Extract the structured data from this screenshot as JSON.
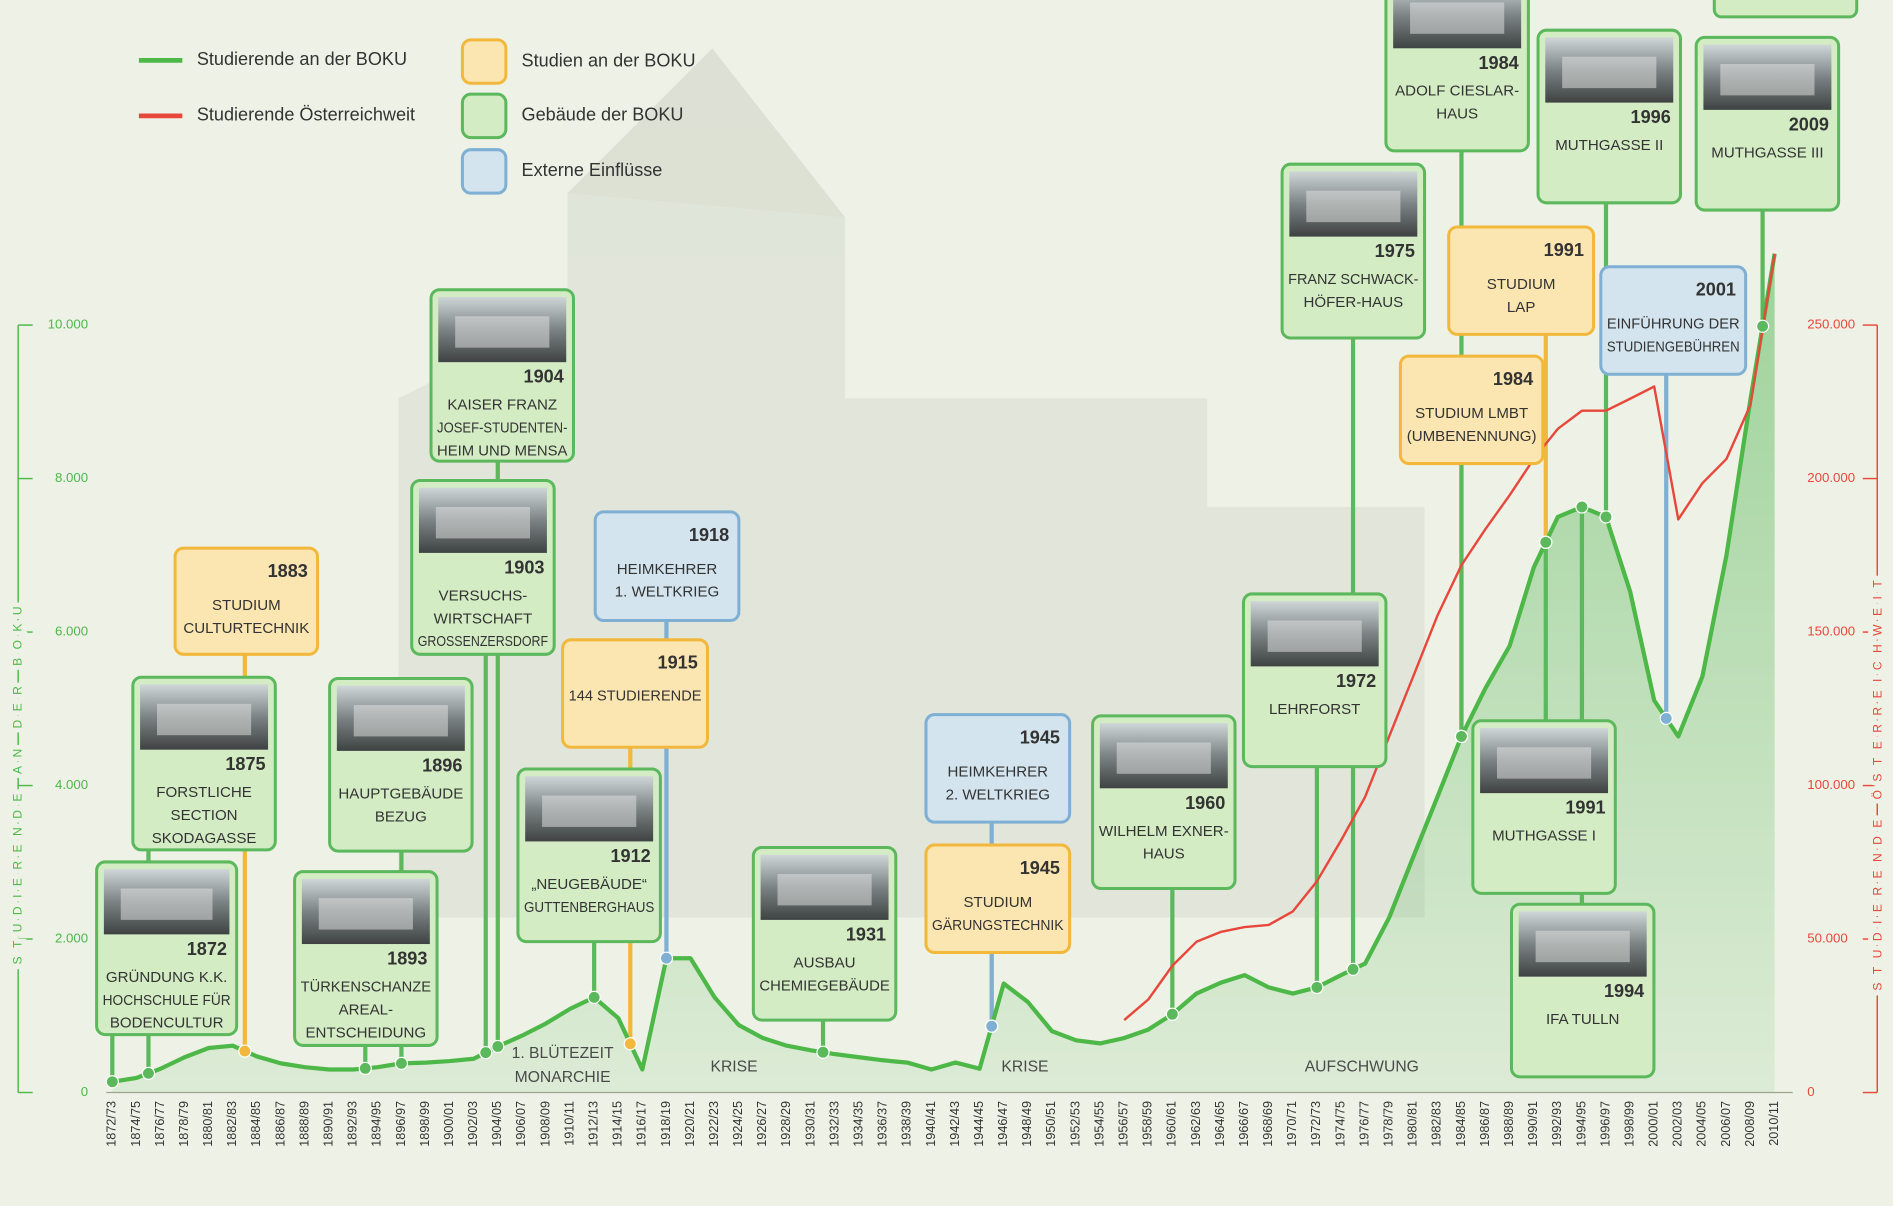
{
  "chart_data": {
    "type": "line",
    "axis_title": "STUDIERENDE AN DER BOKU",
    "axis2_title": "STUDIERENDE ÖSTERREICHWEIT",
    "categories": [
      "1872/73",
      "1874/75",
      "1876/77",
      "1878/79",
      "1880/81",
      "1882/83",
      "1884/85",
      "1886/87",
      "1888/89",
      "1890/91",
      "1892/93",
      "1894/95",
      "1896/97",
      "1898/99",
      "1900/01",
      "1902/03",
      "1904/05",
      "1906/07",
      "1908/09",
      "1910/11",
      "1912/13",
      "1914/15",
      "1916/17",
      "1918/19",
      "1920/21",
      "1922/23",
      "1924/25",
      "1926/27",
      "1928/29",
      "1930/31",
      "1932/33",
      "1934/35",
      "1936/37",
      "1938/39",
      "1940/41",
      "1942/43",
      "1944/45",
      "1946/47",
      "1948/49",
      "1950/51",
      "1952/53",
      "1954/55",
      "1956/57",
      "1958/59",
      "1960/61",
      "1962/63",
      "1964/65",
      "1966/67",
      "1968/69",
      "1970/71",
      "1972/73",
      "1974/75",
      "1976/77",
      "1978/79",
      "1980/81",
      "1982/83",
      "1984/85",
      "1986/87",
      "1988/89",
      "1990/91",
      "1992/93",
      "1994/95",
      "1996/97",
      "1998/99",
      "2000/01",
      "2002/03",
      "2004/05",
      "2006/07",
      "2008/09",
      "2010/11"
    ],
    "series": [
      {
        "name": "Studierende an der BOKU",
        "color": "#4db848",
        "values": [
          140,
          190,
          310,
          460,
          580,
          610,
          470,
          380,
          330,
          300,
          300,
          330,
          380,
          390,
          410,
          440,
          600,
          740,
          900,
          1090,
          1240,
          970,
          300,
          1750,
          1750,
          1240,
          880,
          710,
          610,
          550,
          500,
          460,
          420,
          390,
          300,
          390,
          310,
          1420,
          1180,
          800,
          680,
          640,
          710,
          820,
          1020,
          1290,
          1430,
          1530,
          1370,
          1290,
          1370,
          1530,
          1680,
          2280,
          3070,
          3850,
          4640,
          5270,
          5820,
          6840,
          7500,
          7630,
          7500,
          6530,
          5110,
          4640,
          5420,
          7000,
          9040,
          10930
        ]
      },
      {
        "name": "Studierende Österreichweit",
        "color": "#e8473c",
        "axis": "y2",
        "values": [
          null,
          null,
          null,
          null,
          null,
          null,
          null,
          null,
          null,
          null,
          null,
          null,
          null,
          null,
          null,
          null,
          null,
          null,
          null,
          null,
          null,
          null,
          null,
          null,
          null,
          null,
          null,
          null,
          null,
          null,
          null,
          null,
          null,
          null,
          null,
          null,
          null,
          null,
          null,
          null,
          null,
          null,
          23600,
          30300,
          41300,
          49100,
          52300,
          53900,
          54600,
          59000,
          68800,
          82100,
          96300,
          116000,
          135600,
          155300,
          171800,
          183600,
          194600,
          206400,
          216200,
          222100,
          222100,
          226000,
          230000,
          186700,
          198500,
          206400,
          224100,
          273200
        ]
      }
    ],
    "ylim": [
      0,
      14000
    ],
    "yticks": [
      0,
      {
        "value": 2000,
        "label": "2.000"
      },
      {
        "value": 4000,
        "label": "4.000"
      },
      {
        "value": 6000,
        "label": "6.000"
      },
      {
        "value": 8000,
        "label": "8.000"
      },
      {
        "value": 10000,
        "label": "10.000"
      }
    ],
    "y2lim": [
      0,
      350000
    ],
    "y2ticks": [
      0,
      {
        "value": 50000,
        "label": "50.000"
      },
      {
        "value": 100000,
        "label": "100.000"
      },
      {
        "value": 150000,
        "label": "150.000"
      },
      {
        "value": 200000,
        "label": "200.000"
      },
      {
        "value": 250000,
        "label": "250.000"
      }
    ],
    "grid": false,
    "event_types": [
      {
        "name": "Studien an der BOKU",
        "color": "#f2b83c",
        "fill": "#fbe6b2",
        "events": [
          {
            "year": 1883,
            "lines": [
              "STUDIUM",
              "CULTURTECHNIK"
            ]
          },
          {
            "year": 1915,
            "lines": [
              "144 STUDIERENDE"
            ]
          },
          {
            "year": 1945,
            "lines": [
              "STUDIUM",
              "GÄRUNGSTECHNIK"
            ]
          },
          {
            "year": 1984,
            "lines": [
              "STUDIUM LMBT",
              "(UMBENENNUNG)"
            ]
          },
          {
            "year": 1991,
            "lines": [
              "STUDIUM",
              "LAP"
            ]
          }
        ]
      },
      {
        "name": "Gebäude der BOKU",
        "color": "#5cb85c",
        "fill": "#d3ecc4",
        "events": [
          {
            "year": 1872,
            "lines": [
              "GRÜNDUNG K.K.",
              "HOCHSCHULE FÜR",
              "BODENCULTUR"
            ]
          },
          {
            "year": 1875,
            "lines": [
              "FORSTLICHE",
              "SECTION",
              "SKODAGASSE"
            ]
          },
          {
            "year": 1893,
            "lines": [
              "TÜRKENSCHANZE",
              "AREAL-",
              "ENTSCHEIDUNG"
            ]
          },
          {
            "year": 1896,
            "lines": [
              "HAUPTGEBÄUDE",
              "BEZUG"
            ]
          },
          {
            "year": 1903,
            "lines": [
              "VERSUCHS-",
              "WIRTSCHAFT",
              "GROSSENZERSDORF"
            ]
          },
          {
            "year": 1904,
            "lines": [
              "KAISER FRANZ",
              "JOSEF-STUDENTEN-",
              "HEIM UND MENSA"
            ]
          },
          {
            "year": 1912,
            "lines": [
              "„NEUGEBÄUDE“",
              "GUTTENBERGHAUS"
            ]
          },
          {
            "year": 1931,
            "lines": [
              "AUSBAU",
              "CHEMIEGEBÄUDE"
            ]
          },
          {
            "year": 1960,
            "lines": [
              "WILHELM EXNER-",
              "HAUS"
            ]
          },
          {
            "year": 1972,
            "lines": [
              "LEHRFORST"
            ]
          },
          {
            "year": 1975,
            "lines": [
              "FRANZ SCHWACK-",
              "HÖFER-HAUS"
            ]
          },
          {
            "year": 1984,
            "lines": [
              "ADOLF CIESLAR-",
              "HAUS"
            ]
          },
          {
            "year": 1991,
            "lines": [
              "MUTHGASSE I"
            ]
          },
          {
            "year": 1994,
            "lines": [
              "IFA TULLN"
            ]
          },
          {
            "year": 1996,
            "lines": [
              "MUTHGASSE II"
            ]
          },
          {
            "year": 2009,
            "lines": [
              "MUTHGASSE III"
            ]
          }
        ]
      },
      {
        "name": "Externe Einflüsse",
        "color": "#7fb0d3",
        "fill": "#d3e4ee",
        "events": [
          {
            "year": 1918,
            "lines": [
              "HEIMKEHRER",
              "1. WELTKRIEG"
            ]
          },
          {
            "year": 1945,
            "lines": [
              "HEIMKEHRER",
              "2. WELTKRIEG"
            ]
          },
          {
            "year": 2001,
            "lines": [
              "EINFÜHRUNG DER",
              "STUDIENGEBÜHREN"
            ]
          }
        ]
      }
    ],
    "periods": [
      {
        "lines": [
          "1. BLÜTEZEIT",
          "MONARCHIE"
        ]
      },
      {
        "lines": [
          "KRISE"
        ]
      },
      {
        "lines": [
          "KRISE"
        ]
      },
      {
        "lines": [
          "AUFSCHWUNG"
        ]
      }
    ]
  }
}
